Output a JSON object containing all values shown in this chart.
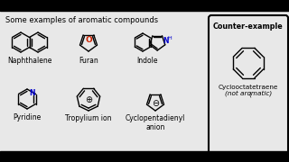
{
  "title": "Some examples of aromatic compounds",
  "bg_color": "#e8e8e8",
  "text_color": "#000000",
  "line_color": "#000000",
  "furan_O_color": "#cc2200",
  "indole_N_color": "#0000cc",
  "pyridine_N_color": "#0000cc",
  "labels": {
    "naphthalene": "Naphthalene",
    "furan": "Furan",
    "indole": "Indole",
    "pyridine": "Pyridine",
    "tropylium": "Tropylium ion",
    "cyclopenta": "Cyclopentadienyl\nanion",
    "counter_title": "Counter-example",
    "counter_name": "Cyclooctatetraene\n(not aromatic)"
  }
}
